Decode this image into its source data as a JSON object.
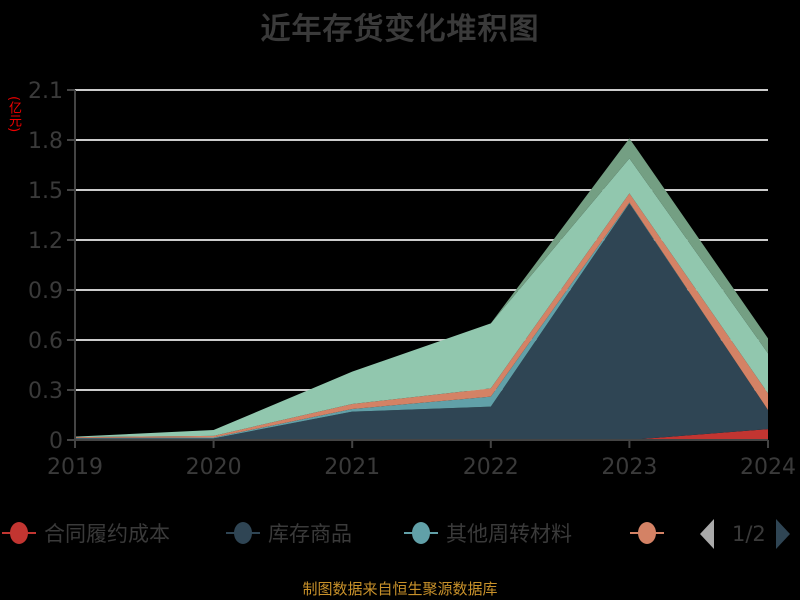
{
  "title": "近年存货变化堆积图",
  "unit_label": "(亿元)",
  "source_text": "制图数据来自恒生聚源数据库",
  "legend": {
    "items": [
      {
        "label": "合同履约成本",
        "color": "#c23531"
      },
      {
        "label": "库存商品",
        "color": "#2f4554"
      },
      {
        "label": "其他周转材料",
        "color": "#61a0a8"
      },
      {
        "label": "",
        "color": "#d48265"
      }
    ],
    "page": "1/2"
  },
  "chart_data": {
    "type": "area",
    "stacked": true,
    "title": "近年存货变化堆积图",
    "xlabel": "",
    "ylabel": "(亿元)",
    "x": [
      "2019",
      "2020",
      "2021",
      "2022",
      "2023",
      "2024"
    ],
    "yticks": [
      "0",
      "0.3",
      "0.6",
      "0.9",
      "1.2",
      "1.5",
      "1.8",
      "2.1"
    ],
    "ylim": [
      0,
      2.1
    ],
    "grid": true,
    "legend_position": "bottom",
    "series": [
      {
        "name": "合同履约成本",
        "color": "#c23531",
        "values": [
          0.0,
          0.0,
          0.0,
          0.0,
          0.0,
          0.065
        ]
      },
      {
        "name": "库存商品",
        "color": "#2f4554",
        "values": [
          0.01,
          0.01,
          0.17,
          0.2,
          1.42,
          0.115
        ]
      },
      {
        "name": "其他周转材料",
        "color": "#61a0a8",
        "values": [
          0.002,
          0.005,
          0.016,
          0.06,
          0.005,
          0.0
        ]
      },
      {
        "name": "(series 4)",
        "color": "#d48265",
        "values": [
          0.005,
          0.01,
          0.03,
          0.05,
          0.055,
          0.1
        ]
      },
      {
        "name": "(series 5)",
        "color": "#91c7ae",
        "values": [
          0.003,
          0.035,
          0.194,
          0.39,
          0.21,
          0.24
        ]
      },
      {
        "name": "(series 6)",
        "color": "#749f83",
        "values": [
          0.0,
          0.0,
          0.0,
          0.0,
          0.12,
          0.09
        ]
      }
    ]
  },
  "axis": {
    "x_labels": [
      "2019",
      "2020",
      "2021",
      "2022",
      "2023",
      "2024"
    ],
    "y_labels": [
      "0",
      "0.3",
      "0.6",
      "0.9",
      "1.2",
      "1.5",
      "1.8",
      "2.1"
    ]
  }
}
